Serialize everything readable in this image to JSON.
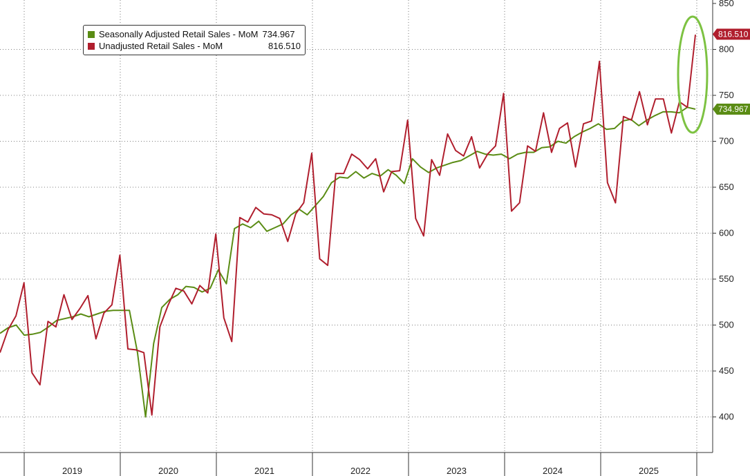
{
  "chart_data": {
    "type": "line",
    "grid": true,
    "y_axis_position": "right",
    "ylim": [
      355,
      850
    ],
    "y_ticks": [
      400,
      450,
      500,
      550,
      600,
      650,
      700,
      750,
      800,
      850
    ],
    "x_start": "2018-09",
    "years": [
      "2019",
      "2020",
      "2021",
      "2022",
      "2023",
      "2024",
      "2025"
    ],
    "series": [
      {
        "name": "Seasonally Adjusted Retail Sales - MoM",
        "color": "#5a8c14",
        "last_value_label": "734.967",
        "values": [
          491,
          497,
          500,
          489,
          490,
          492,
          498,
          505,
          507,
          509,
          512,
          509,
          512,
          515,
          516,
          516,
          516,
          470,
          400,
          480,
          519,
          528,
          533,
          542,
          541,
          536,
          540,
          560,
          545,
          605,
          610,
          606,
          613,
          602,
          606,
          610,
          620,
          626,
          620,
          630,
          640,
          655,
          661,
          660,
          667,
          660,
          665,
          662,
          669,
          663,
          654,
          681,
          672,
          666,
          671,
          674,
          677,
          679,
          684,
          689,
          686,
          685,
          686,
          681,
          686,
          688,
          688,
          693,
          694,
          700,
          698,
          705,
          710,
          714,
          719,
          713,
          714,
          722,
          724,
          717,
          723,
          728,
          732,
          732,
          731,
          737,
          735
        ],
        "colored_breaks": []
      },
      {
        "name": "Unadjusted Retail Sales - MoM",
        "color": "#b01e2d",
        "last_value_label": "816.510",
        "values": [
          470,
          495,
          510,
          546,
          448,
          435,
          504,
          498,
          533,
          506,
          518,
          532,
          485,
          513,
          522,
          576,
          474,
          473,
          470,
          402,
          498,
          521,
          540,
          537,
          523,
          543,
          535,
          599,
          508,
          482,
          617,
          612,
          628,
          621,
          620,
          616,
          591,
          621,
          633,
          687,
          572,
          565,
          665,
          665,
          686,
          680,
          670,
          681,
          645,
          667,
          668,
          723,
          616,
          597,
          680,
          663,
          708,
          690,
          684,
          705,
          671,
          686,
          695,
          752,
          624,
          633,
          695,
          689,
          731,
          688,
          714,
          720,
          672,
          719,
          722,
          787,
          655,
          633,
          727,
          723,
          754,
          718,
          746,
          746,
          709,
          743,
          737,
          816
        ]
      }
    ],
    "legend": {
      "placement": "top-left",
      "entries": [
        {
          "name": "Seasonally Adjusted Retail Sales - MoM",
          "value": "734.967"
        },
        {
          "name": "Unadjusted Retail Sales - MoM",
          "value": "816.510"
        }
      ]
    },
    "annotation": {
      "type": "ellipse",
      "color": "#7dc242",
      "around": "latest values"
    }
  }
}
